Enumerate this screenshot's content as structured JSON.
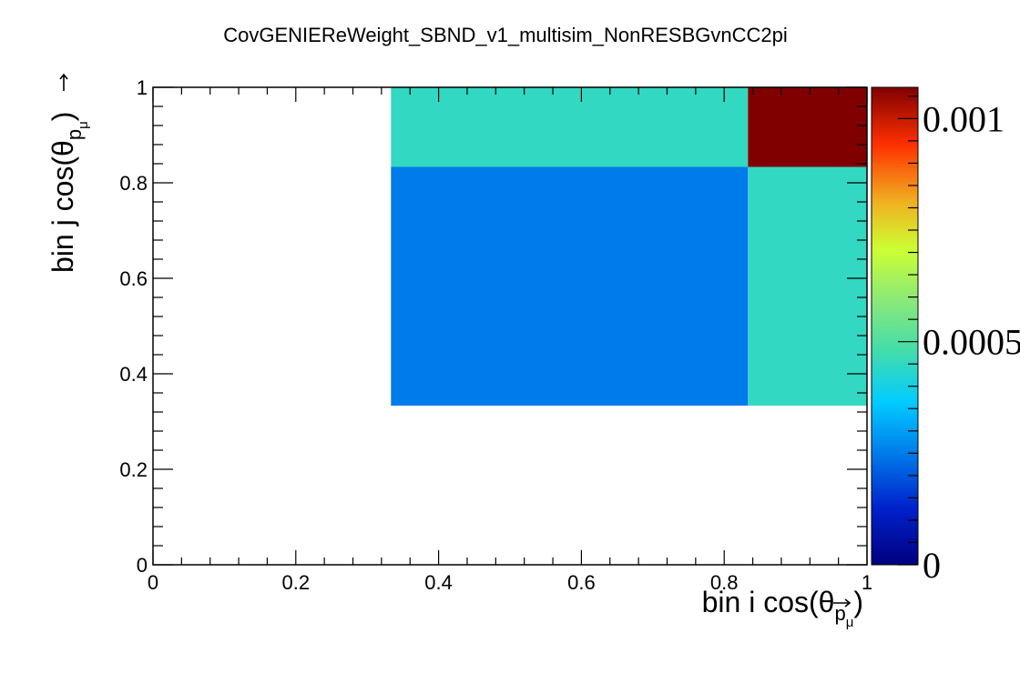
{
  "chart_data": {
    "type": "heatmap",
    "title": "CovGENIEReWeight_SBND_v1_multisim_NonRESBGvnCC2pi",
    "xlabel": "bin i cos(θ",
    "xlabel_sub": "p",
    "xlabel_subsub": "μ",
    "xlabel_close": ")",
    "ylabel": "bin j cos(θ",
    "ylabel_sub": "p",
    "ylabel_subsub": "μ",
    "ylabel_close": ")",
    "xlim": [
      0,
      1
    ],
    "ylim": [
      0,
      1
    ],
    "x_edges": [
      0,
      0.3333,
      0.8333,
      1.0
    ],
    "y_edges": [
      0,
      0.3333,
      0.8333,
      1.0
    ],
    "x_tick_labels": [
      "0",
      "0.2",
      "0.4",
      "0.6",
      "0.8",
      "1"
    ],
    "y_tick_labels": [
      "0",
      "0.2",
      "0.4",
      "0.6",
      "0.8",
      "1"
    ],
    "cells": [
      {
        "x0": 0.3333,
        "x1": 0.8333,
        "y0": 0.3333,
        "y1": 0.8333,
        "value": 0.00025
      },
      {
        "x0": 0.8333,
        "x1": 1.0,
        "y0": 0.3333,
        "y1": 0.8333,
        "value": 0.00045
      },
      {
        "x0": 0.3333,
        "x1": 0.8333,
        "y0": 0.8333,
        "y1": 1.0,
        "value": 0.00045
      },
      {
        "x0": 0.8333,
        "x1": 1.0,
        "y0": 0.8333,
        "y1": 1.0,
        "value": 0.00107
      }
    ],
    "colorbar": {
      "range": [
        0,
        0.00107
      ],
      "tick_labels": [
        {
          "value": 0,
          "label": "0"
        },
        {
          "value": 0.0005,
          "label": "0.0005"
        },
        {
          "value": 0.001,
          "label": "0.001"
        }
      ]
    },
    "grid": false
  }
}
